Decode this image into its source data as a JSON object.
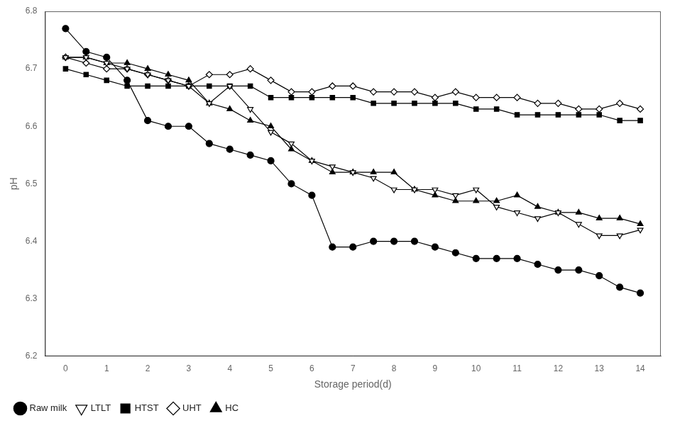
{
  "chart_data": {
    "type": "line",
    "xlabel": "Storage period(d)",
    "ylabel": "pH",
    "x": [
      0,
      0.5,
      1,
      1.5,
      2,
      2.5,
      3,
      3.5,
      4,
      4.5,
      5,
      5.5,
      6,
      6.5,
      7,
      7.5,
      8,
      8.5,
      9,
      9.5,
      10,
      10.5,
      11,
      11.5,
      12,
      12.5,
      13,
      13.5,
      14
    ],
    "series": [
      {
        "name": "Raw milk",
        "color": "#000000",
        "marker": "circle",
        "values": [
          6.77,
          6.73,
          6.72,
          6.68,
          6.61,
          6.6,
          6.6,
          6.57,
          6.56,
          6.55,
          6.54,
          6.5,
          6.48,
          6.39,
          6.39,
          6.4,
          6.4,
          6.4,
          6.39,
          6.38,
          6.37,
          6.37,
          6.37,
          6.36,
          6.35,
          6.35,
          6.34,
          6.32,
          6.31
        ]
      },
      {
        "name": "LTLT",
        "color": "#000000",
        "marker": "triangle-down-open",
        "values": [
          6.72,
          6.72,
          6.71,
          6.7,
          6.69,
          6.68,
          6.67,
          6.64,
          6.67,
          6.63,
          6.59,
          6.57,
          6.54,
          6.53,
          6.52,
          6.51,
          6.49,
          6.49,
          6.49,
          6.48,
          6.49,
          6.46,
          6.45,
          6.44,
          6.45,
          6.43,
          6.41,
          6.41,
          6.42
        ]
      },
      {
        "name": "HTST",
        "color": "#000000",
        "marker": "square",
        "values": [
          6.7,
          6.69,
          6.68,
          6.67,
          6.67,
          6.67,
          6.67,
          6.67,
          6.67,
          6.67,
          6.65,
          6.65,
          6.65,
          6.65,
          6.65,
          6.64,
          6.64,
          6.64,
          6.64,
          6.64,
          6.63,
          6.63,
          6.62,
          6.62,
          6.62,
          6.62,
          6.62,
          6.61,
          6.61
        ]
      },
      {
        "name": "UHT",
        "color": "#000000",
        "marker": "diamond-open",
        "values": [
          6.72,
          6.71,
          6.7,
          6.7,
          6.69,
          6.68,
          6.67,
          6.69,
          6.69,
          6.7,
          6.68,
          6.66,
          6.66,
          6.67,
          6.67,
          6.66,
          6.66,
          6.66,
          6.65,
          6.66,
          6.65,
          6.65,
          6.65,
          6.64,
          6.64,
          6.63,
          6.63,
          6.64,
          6.63
        ]
      },
      {
        "name": "HC",
        "color": "#000000",
        "marker": "triangle",
        "values": [
          6.72,
          6.72,
          6.71,
          6.71,
          6.7,
          6.69,
          6.68,
          6.64,
          6.63,
          6.61,
          6.6,
          6.56,
          6.54,
          6.52,
          6.52,
          6.52,
          6.52,
          6.49,
          6.48,
          6.47,
          6.47,
          6.47,
          6.48,
          6.46,
          6.45,
          6.45,
          6.44,
          6.44,
          6.43
        ]
      }
    ],
    "xlim": [
      -0.5,
      14.5
    ],
    "xticks": [
      0,
      1,
      2,
      3,
      4,
      5,
      6,
      7,
      8,
      9,
      10,
      11,
      12,
      13,
      14
    ],
    "ylim": [
      6.2,
      6.8
    ],
    "yticks": [
      6.2,
      6.3,
      6.4,
      6.5,
      6.6,
      6.7,
      6.8
    ],
    "grid": false,
    "legend": "lower left"
  }
}
